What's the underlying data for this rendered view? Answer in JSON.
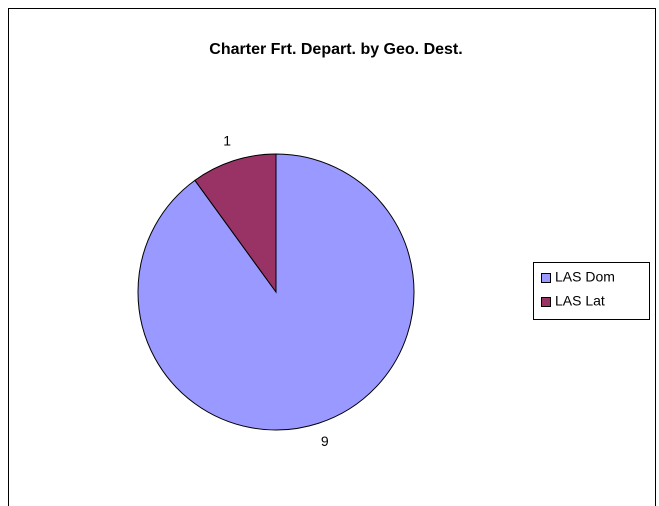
{
  "chart_data": {
    "type": "pie",
    "title": "Charter Frt. Depart. by Geo. Dest.",
    "categories": [
      "LAS Dom",
      "LAS Lat"
    ],
    "values": [
      9,
      1
    ],
    "colors": [
      "#9999ff",
      "#993366"
    ],
    "legend": "right"
  }
}
